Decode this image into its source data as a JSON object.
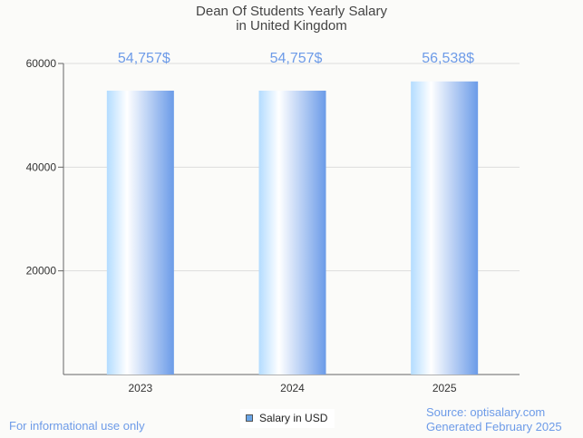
{
  "chart_data": {
    "type": "bar",
    "title": "Dean Of Students Yearly Salary",
    "subtitle": "in United Kingdom",
    "categories": [
      "2023",
      "2024",
      "2025"
    ],
    "values": [
      54757,
      54757,
      56538
    ],
    "data_labels": [
      "54,757$",
      "54,757$",
      "56,538$"
    ],
    "yticks": [
      20000,
      40000,
      60000
    ],
    "ylim": [
      0,
      60000
    ],
    "xlabel": "",
    "ylabel": "",
    "grid": true,
    "legend": {
      "label": "Salary in USD",
      "placement": "bottom-center"
    },
    "colors": {
      "bar_light": "#b3dcff",
      "bar_mid": "#ffffff",
      "bar_dark": "#6b9be8",
      "label": "#6d9be8"
    }
  },
  "footer": {
    "left": "For informational use only",
    "source": "Source: optisalary.com",
    "generated": "Generated February 2025"
  }
}
